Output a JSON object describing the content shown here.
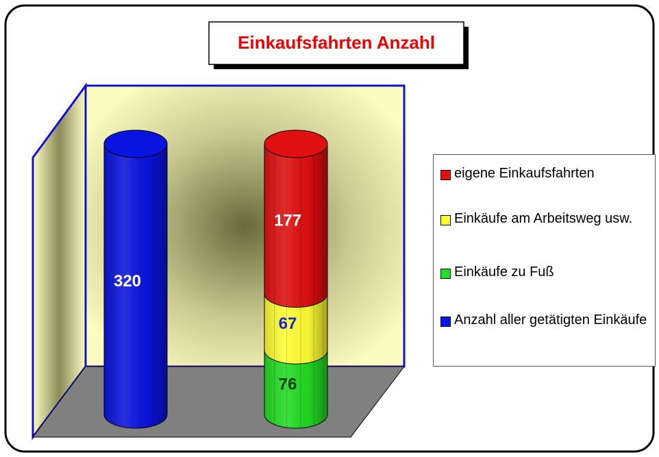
{
  "chart_data": {
    "type": "bar",
    "stacked": true,
    "title": "Einkaufsfahrten Anzahl",
    "categories": [
      null,
      null
    ],
    "series": [
      {
        "name": "Anzahl aller getätigten Einkäufe",
        "color": "#0a14e0",
        "label_color": "#ffffff",
        "values": [
          320,
          null
        ]
      },
      {
        "name": "Einkäufe zu Fuß",
        "color": "#22dd22",
        "label_color": "#0a3a0a",
        "values": [
          null,
          76
        ]
      },
      {
        "name": "Einkäufe am Arbeitsweg usw.",
        "color": "#ffff33",
        "label_color": "#1a28c8",
        "values": [
          null,
          67
        ]
      },
      {
        "name": "eigene Einkaufsfahrten",
        "color": "#e01010",
        "label_color": "#ffffff",
        "values": [
          null,
          177
        ]
      }
    ],
    "legend": "right"
  }
}
